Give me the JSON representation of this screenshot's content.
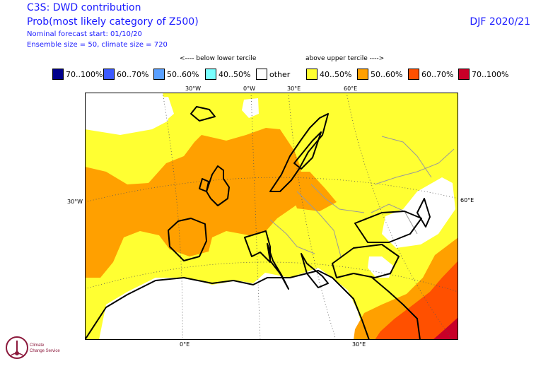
{
  "header": {
    "title": "C3S: DWD contribution",
    "subtitle": "Prob(most likely category of Z500)",
    "forecast_start": "Nominal forecast start: 01/10/20",
    "ensemble": "Ensemble size = 50, climate size = 720",
    "season": "DJF 2020/21"
  },
  "legend": {
    "below_caption": "<---- below lower tercile",
    "above_caption": "above upper tercile ---->",
    "items": [
      {
        "label": "70..100%",
        "color": "#00008b"
      },
      {
        "label": "60..70%",
        "color": "#3c5aff"
      },
      {
        "label": "50..60%",
        "color": "#5aa0ff"
      },
      {
        "label": "40..50%",
        "color": "#78ffff"
      },
      {
        "label": "other",
        "color": "#ffffff"
      },
      {
        "label": "40..50%",
        "color": "#ffff32"
      },
      {
        "label": "50..60%",
        "color": "#ffa000"
      },
      {
        "label": "60..70%",
        "color": "#ff5000"
      },
      {
        "label": "70..100%",
        "color": "#c80028"
      }
    ]
  },
  "axis_labels": {
    "top": [
      "30°W",
      "0°W",
      "30°E",
      "60°E"
    ],
    "left": "30°W",
    "right": "60°E",
    "bottom": [
      "0°E",
      "30°E"
    ]
  },
  "logo": {
    "name": "Climate Change Service",
    "icon": "climate-change-service-logo-icon"
  }
}
